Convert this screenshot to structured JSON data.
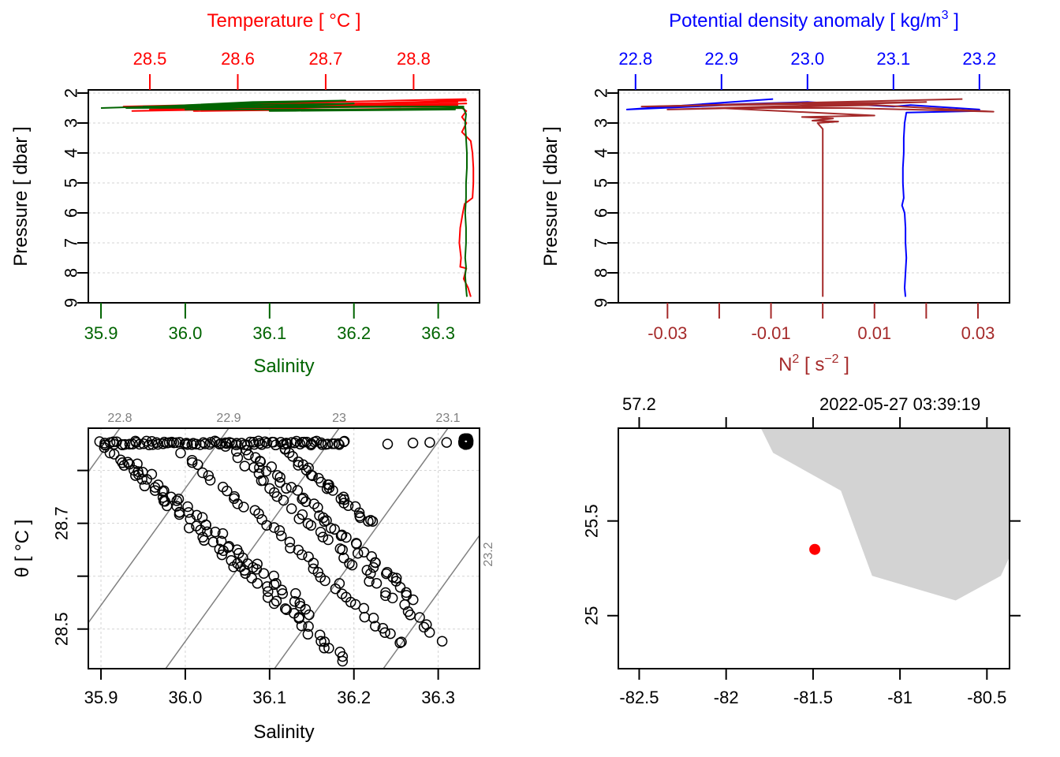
{
  "colors": {
    "temperature": "#ff0000",
    "salinity": "#006400",
    "density": "#0000ff",
    "n2": "#a52a2a",
    "isopycnal": "#808080",
    "grid": "#d3d3d3",
    "land": "#d3d3d3",
    "station": "#ff0000",
    "axis": "#000000"
  },
  "chart_data": [
    {
      "id": "profile-TS",
      "type": "line",
      "ylabel": "Pressure [ dbar ]",
      "ylim": [
        9,
        2
      ],
      "yticks": [
        "2",
        "3",
        "4",
        "5",
        "6",
        "7",
        "8",
        "9"
      ],
      "ytick_values": [
        2,
        3,
        4,
        5,
        6,
        7,
        8,
        9
      ],
      "grid": true,
      "top_axis": {
        "label": "Temperature [ °C ]",
        "range": [
          28.43,
          28.875
        ],
        "ticks": [
          "28.5",
          "28.6",
          "28.7",
          "28.8"
        ],
        "tick_values": [
          28.5,
          28.6,
          28.7,
          28.8
        ]
      },
      "bottom_axis": {
        "label": "Salinity",
        "range": [
          35.885,
          36.349
        ],
        "ticks": [
          "35.9",
          "36.0",
          "36.1",
          "36.2",
          "36.3"
        ],
        "tick_values": [
          35.9,
          36.0,
          36.1,
          36.2,
          36.3
        ]
      },
      "series": [
        {
          "name": "Temperature",
          "axis": "top",
          "points": [
            [
              28.86,
              2.2
            ],
            [
              28.47,
              2.45
            ],
            [
              28.85,
              2.3
            ],
            [
              28.5,
              2.55
            ],
            [
              28.86,
              2.25
            ],
            [
              28.6,
              2.5
            ],
            [
              28.85,
              2.4
            ],
            [
              28.48,
              2.6
            ],
            [
              28.86,
              2.35
            ],
            [
              28.55,
              2.6
            ],
            [
              28.855,
              2.5
            ],
            [
              28.86,
              2.6
            ],
            [
              28.855,
              2.8
            ],
            [
              28.86,
              3.0
            ],
            [
              28.855,
              3.3
            ],
            [
              28.865,
              3.6
            ],
            [
              28.867,
              4.0
            ],
            [
              28.868,
              4.5
            ],
            [
              28.868,
              5.0
            ],
            [
              28.867,
              5.5
            ],
            [
              28.858,
              5.7
            ],
            [
              28.856,
              6.0
            ],
            [
              28.853,
              6.5
            ],
            [
              28.852,
              7.0
            ],
            [
              28.854,
              7.5
            ],
            [
              28.853,
              7.8
            ],
            [
              28.86,
              7.85
            ],
            [
              28.857,
              8.2
            ],
            [
              28.862,
              8.5
            ],
            [
              28.865,
              8.8
            ]
          ]
        },
        {
          "name": "Salinity",
          "axis": "bottom",
          "points": [
            [
              35.9,
              2.5
            ],
            [
              36.19,
              2.25
            ],
            [
              36.08,
              2.3
            ],
            [
              35.93,
              2.5
            ],
            [
              36.33,
              2.45
            ],
            [
              35.95,
              2.45
            ],
            [
              36.2,
              2.35
            ],
            [
              36.0,
              2.55
            ],
            [
              36.32,
              2.55
            ],
            [
              36.1,
              2.6
            ],
            [
              36.33,
              2.5
            ],
            [
              36.333,
              2.7
            ],
            [
              36.332,
              3.0
            ],
            [
              36.333,
              3.5
            ],
            [
              36.334,
              4.0
            ],
            [
              36.334,
              4.5
            ],
            [
              36.333,
              5.0
            ],
            [
              36.333,
              5.5
            ],
            [
              36.332,
              6.0
            ],
            [
              36.333,
              6.5
            ],
            [
              36.333,
              7.0
            ],
            [
              36.332,
              7.5
            ],
            [
              36.333,
              7.8
            ],
            [
              36.332,
              8.1
            ],
            [
              36.333,
              8.5
            ],
            [
              36.334,
              8.8
            ]
          ]
        }
      ]
    },
    {
      "id": "profile-density-N2",
      "type": "line",
      "ylabel": "Pressure [ dbar ]",
      "ylim": [
        9,
        2
      ],
      "yticks": [
        "2",
        "3",
        "4",
        "5",
        "6",
        "7",
        "8",
        "9"
      ],
      "ytick_values": [
        2,
        3,
        4,
        5,
        6,
        7,
        8,
        9
      ],
      "grid": true,
      "top_axis": {
        "label": "Potential density anomaly [ kg/m³ ]",
        "range": [
          22.78,
          23.235
        ],
        "ticks": [
          "22.8",
          "22.9",
          "23.0",
          "23.1",
          "23.2"
        ],
        "tick_values": [
          22.8,
          22.9,
          23.0,
          23.1,
          23.2
        ]
      },
      "bottom_axis": {
        "label": "N² [ s⁻² ]",
        "range": [
          -0.0395,
          0.0361
        ],
        "ticks": [
          "-0.03",
          "-0.01",
          "0.01",
          "0.03"
        ],
        "tick_values": [
          -0.03,
          -0.01,
          0.01,
          0.03
        ],
        "minor_ticks": [
          -0.02,
          0.0,
          0.02
        ]
      },
      "series": [
        {
          "name": "Potential density anomaly",
          "axis": "top",
          "points": [
            [
              22.96,
              2.2
            ],
            [
              22.79,
              2.55
            ],
            [
              22.95,
              2.35
            ],
            [
              22.82,
              2.45
            ],
            [
              23.0,
              2.3
            ],
            [
              23.1,
              2.45
            ],
            [
              23.12,
              2.4
            ],
            [
              23.2,
              2.55
            ],
            [
              23.2,
              2.6
            ],
            [
              23.115,
              2.65
            ],
            [
              23.113,
              3.0
            ],
            [
              23.112,
              3.5
            ],
            [
              23.112,
              4.0
            ],
            [
              23.111,
              4.5
            ],
            [
              23.111,
              5.0
            ],
            [
              23.112,
              5.5
            ],
            [
              23.11,
              5.75
            ],
            [
              23.113,
              6.0
            ],
            [
              23.114,
              6.5
            ],
            [
              23.114,
              7.0
            ],
            [
              23.115,
              7.5
            ],
            [
              23.114,
              8.0
            ],
            [
              23.113,
              8.5
            ],
            [
              23.114,
              8.8
            ]
          ]
        },
        {
          "name": "N²",
          "axis": "bottom",
          "points": [
            [
              0.027,
              2.2
            ],
            [
              -0.035,
              2.45
            ],
            [
              0.02,
              2.3
            ],
            [
              -0.03,
              2.55
            ],
            [
              0.01,
              2.4
            ],
            [
              0.033,
              2.62
            ],
            [
              0.005,
              2.5
            ],
            [
              -0.02,
              2.5
            ],
            [
              0.01,
              2.75
            ],
            [
              -0.004,
              2.8
            ],
            [
              0.002,
              2.85
            ],
            [
              -0.002,
              2.92
            ],
            [
              0.003,
              2.95
            ],
            [
              -0.001,
              3.0
            ],
            [
              0.0,
              3.2
            ],
            [
              0.0,
              3.6
            ],
            [
              0.0,
              4.0
            ],
            [
              0.0,
              4.5
            ],
            [
              0.0,
              5.0
            ],
            [
              0.0,
              5.5
            ],
            [
              0.0,
              6.0
            ],
            [
              0.0,
              6.5
            ],
            [
              0.0,
              7.0
            ],
            [
              0.0,
              7.5
            ],
            [
              0.0,
              8.0
            ],
            [
              0.0,
              8.5
            ],
            [
              0.0,
              8.8
            ]
          ]
        }
      ]
    },
    {
      "id": "TS-diagram",
      "type": "scatter",
      "xlabel": "Salinity",
      "ylabel": "θ [ °C ]",
      "xlim": [
        35.885,
        36.349
      ],
      "ylim": [
        28.425,
        28.88
      ],
      "xticks": [
        "35.9",
        "36.0",
        "36.1",
        "36.2",
        "36.3"
      ],
      "xtick_values": [
        35.9,
        36.0,
        36.1,
        36.2,
        36.3
      ],
      "yticks": [
        "28.5",
        "28.7"
      ],
      "ytick_values": [
        28.5,
        28.7
      ],
      "minor_yticks": [
        28.6,
        28.8
      ],
      "grid": true,
      "isopycnals": [
        {
          "label": "22.8",
          "value": 22.8
        },
        {
          "label": "22.9",
          "value": 22.9
        },
        {
          "label": "23",
          "value": 23.0
        },
        {
          "label": "23.1",
          "value": 23.1
        },
        {
          "label": "23.2",
          "value": 23.2
        }
      ],
      "branches": [
        {
          "s0": 35.9,
          "s1": 36.19,
          "t0": 28.85,
          "t1": 28.44,
          "n": 60
        },
        {
          "s0": 35.93,
          "s1": 36.15,
          "t0": 28.82,
          "t1": 28.53,
          "n": 45
        },
        {
          "s0": 36.0,
          "s1": 36.26,
          "t0": 28.83,
          "t1": 28.47,
          "n": 45
        },
        {
          "s0": 36.05,
          "s1": 36.3,
          "t0": 28.84,
          "t1": 28.48,
          "n": 40
        },
        {
          "s0": 36.07,
          "s1": 36.27,
          "t0": 28.84,
          "t1": 28.56,
          "n": 45
        },
        {
          "s0": 36.12,
          "s1": 36.22,
          "t0": 28.84,
          "t1": 28.7,
          "n": 30
        }
      ],
      "surface_line": {
        "s0": 35.9,
        "s1": 36.19,
        "theta": 28.852,
        "n": 90
      },
      "outliers": [
        [
          36.24,
          28.85
        ],
        [
          36.27,
          28.852
        ],
        [
          36.29,
          28.853
        ],
        [
          36.31,
          28.853
        ]
      ],
      "cluster": {
        "s": 36.333,
        "theta": 28.855
      }
    },
    {
      "id": "station-map",
      "type": "scatter",
      "xlim": [
        -82.62,
        -80.37
      ],
      "ylim": [
        24.72,
        25.99
      ],
      "xticks": [
        "-82.5",
        "-82",
        "-81.5",
        "-81",
        "-80.5"
      ],
      "xtick_values": [
        -82.5,
        -82,
        -81.5,
        -81,
        -80.5
      ],
      "yticks": [
        "25",
        "25.5"
      ],
      "ytick_values": [
        25,
        25.5
      ],
      "top_labels": [
        "57.2",
        "2022-05-27 03:39:19"
      ],
      "top_label_values": [
        -82.5,
        -81.0
      ],
      "top_tick_values": [
        -82.5,
        -82,
        -81.5,
        -81,
        -80.5
      ],
      "station": {
        "lon": -81.49,
        "lat": 25.35
      },
      "land": [
        [
          -81.8,
          25.99
        ],
        [
          -81.73,
          25.86
        ],
        [
          -81.34,
          25.66
        ],
        [
          -81.16,
          25.21
        ],
        [
          -80.68,
          25.08
        ],
        [
          -80.42,
          25.21
        ],
        [
          -80.37,
          25.31
        ],
        [
          -80.37,
          25.99
        ]
      ]
    }
  ]
}
